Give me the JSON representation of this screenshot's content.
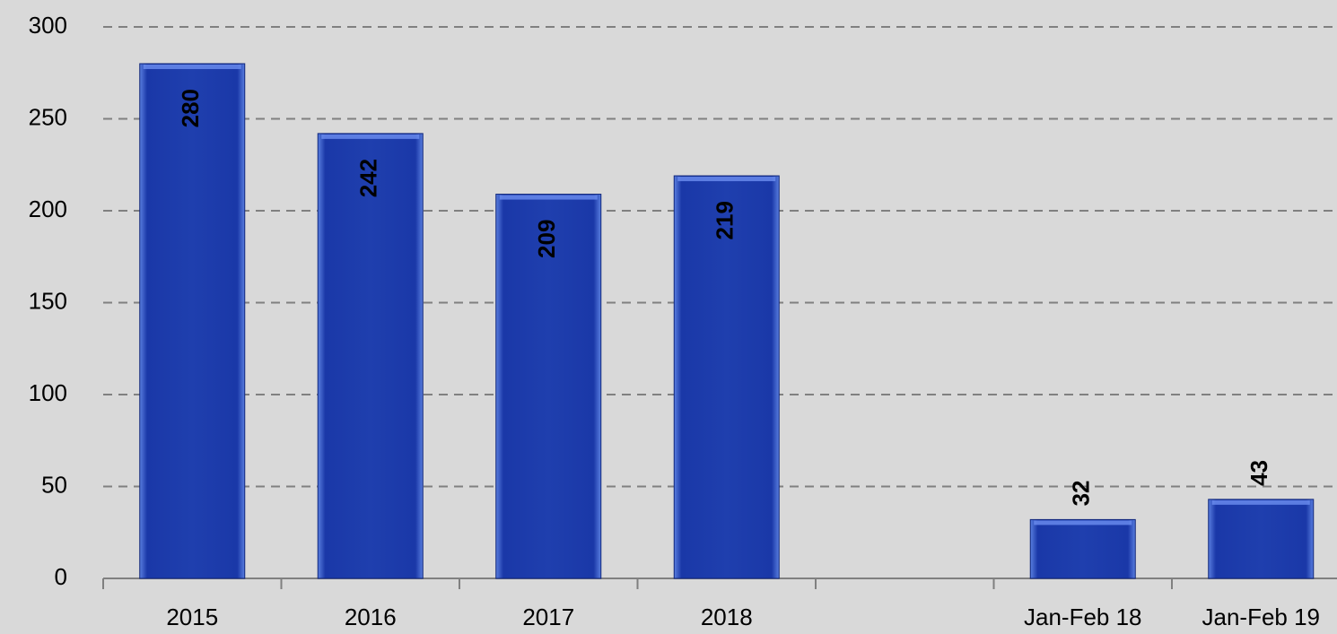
{
  "chart_data": {
    "type": "bar",
    "categories": [
      "2015",
      "2016",
      "2017",
      "2018",
      null,
      "Jan-Feb 18",
      "Jan-Feb 19"
    ],
    "values": [
      280,
      242,
      209,
      219,
      null,
      32,
      43
    ],
    "color": "#1f3fae",
    "ylim": [
      0,
      300
    ],
    "yticks": [
      0,
      50,
      100,
      150,
      200,
      250,
      300
    ],
    "grid": true
  }
}
